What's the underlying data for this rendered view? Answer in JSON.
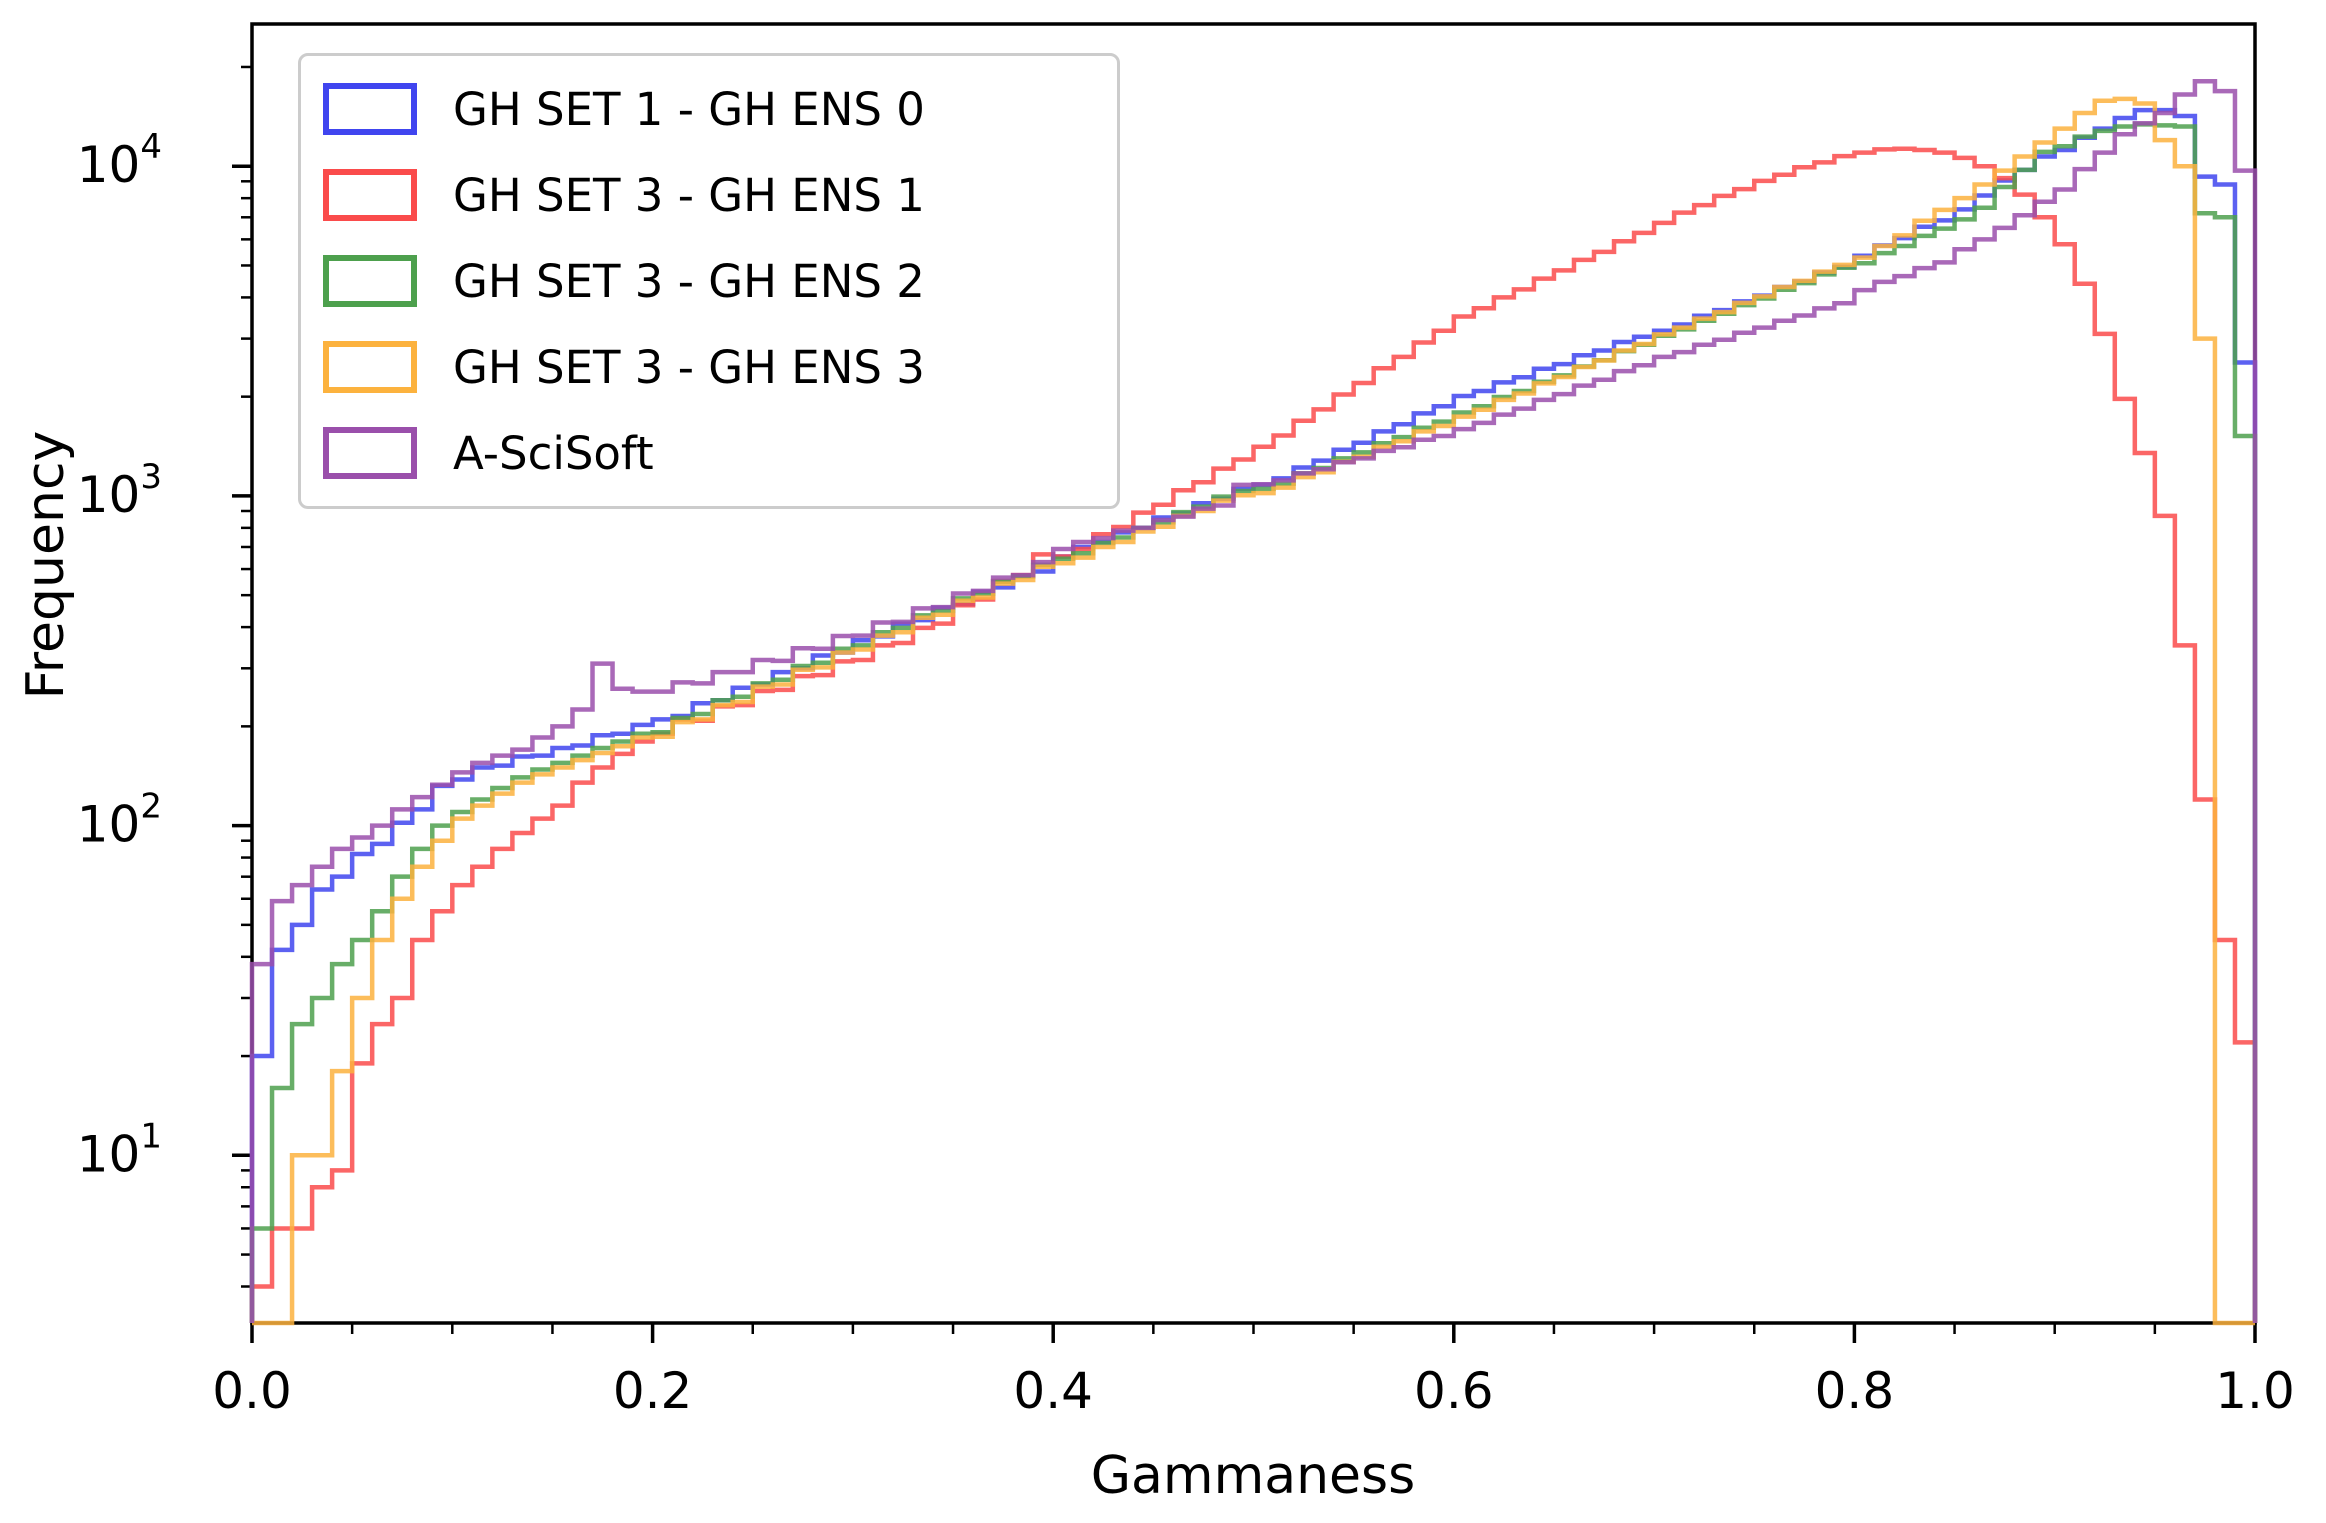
{
  "figure": {
    "xlabel": "Gammaness",
    "ylabel": "Frequency"
  },
  "axis_color": "#000000",
  "legend_border_color": "#cccccc",
  "chart_data": {
    "type": "bar",
    "subtype": "step-histogram",
    "title": "",
    "xlabel": "Gammaness",
    "ylabel": "Frequency",
    "xlim": [
      0.0,
      1.0
    ],
    "yscale": "log",
    "ylim": [
      3.1,
      27000
    ],
    "bins": 100,
    "bin_width": 0.01,
    "grid": false,
    "legend_position": "upper left",
    "xticks": [
      {
        "value": 0.0,
        "label": "0.0"
      },
      {
        "value": 0.2,
        "label": "0.2"
      },
      {
        "value": 0.4,
        "label": "0.4"
      },
      {
        "value": 0.6,
        "label": "0.6"
      },
      {
        "value": 0.8,
        "label": "0.8"
      },
      {
        "value": 1.0,
        "label": "1.0"
      }
    ],
    "xtick_minor_step": 0.05,
    "yticks": [
      {
        "value": 10,
        "label": "10",
        "exponent": "1"
      },
      {
        "value": 100,
        "label": "10",
        "exponent": "2"
      },
      {
        "value": 1000,
        "label": "10",
        "exponent": "3"
      },
      {
        "value": 10000,
        "label": "10",
        "exponent": "4"
      }
    ],
    "series": [
      {
        "name": "GH SET 1 - GH ENS 0",
        "color": "#4045ef",
        "values": [
          20,
          42,
          50,
          64,
          70,
          82,
          88,
          102,
          112,
          132,
          138,
          150,
          152,
          162,
          163,
          172,
          175,
          188,
          190,
          202,
          210,
          215,
          235,
          240,
          262,
          268,
          292,
          300,
          328,
          335,
          365,
          375,
          410,
          420,
          458,
          470,
          512,
          528,
          572,
          590,
          655,
          700,
          725,
          775,
          800,
          860,
          885,
          950,
          980,
          1050,
          1080,
          1130,
          1220,
          1280,
          1380,
          1450,
          1570,
          1650,
          1780,
          1870,
          2010,
          2080,
          2210,
          2290,
          2430,
          2510,
          2670,
          2760,
          2930,
          3040,
          3170,
          3310,
          3520,
          3660,
          3890,
          4050,
          4300,
          4470,
          4760,
          4950,
          5350,
          5750,
          6050,
          6550,
          6850,
          7400,
          8150,
          9050,
          9750,
          10700,
          11200,
          12200,
          13000,
          14000,
          14800,
          14800,
          14200,
          9300,
          8800,
          2540
        ]
      },
      {
        "name": "GH SET 3 - GH ENS 1",
        "color": "#fa4b4b",
        "values": [
          4,
          6,
          6,
          8,
          9,
          19,
          25,
          30,
          45,
          55,
          66,
          75,
          85,
          95,
          105,
          115,
          135,
          150,
          165,
          180,
          190,
          210,
          208,
          230,
          232,
          256,
          258,
          284,
          286,
          315,
          318,
          352,
          358,
          398,
          410,
          466,
          485,
          552,
          575,
          665,
          655,
          690,
          765,
          805,
          890,
          940,
          1040,
          1100,
          1210,
          1290,
          1410,
          1525,
          1690,
          1830,
          2030,
          2200,
          2440,
          2640,
          2920,
          3170,
          3500,
          3710,
          4000,
          4230,
          4560,
          4830,
          5200,
          5500,
          5920,
          6280,
          6730,
          7230,
          7620,
          8130,
          8520,
          9030,
          9420,
          9930,
          10270,
          10730,
          11000,
          11250,
          11300,
          11200,
          11000,
          10600,
          10000,
          9200,
          8200,
          7000,
          5800,
          4400,
          3100,
          1970,
          1350,
          870,
          352,
          120,
          45,
          22
        ]
      },
      {
        "name": "GH SET 3 - GH ENS 2",
        "color": "#4da04d",
        "values": [
          6,
          16,
          25,
          30,
          38,
          45,
          55,
          70,
          85,
          100,
          110,
          120,
          130,
          140,
          148,
          155,
          163,
          172,
          180,
          190,
          192,
          212,
          218,
          240,
          246,
          270,
          277,
          305,
          312,
          344,
          352,
          386,
          398,
          434,
          448,
          489,
          505,
          549,
          570,
          618,
          645,
          670,
          720,
          748,
          800,
          832,
          893,
          928,
          995,
          1035,
          1050,
          1090,
          1170,
          1215,
          1300,
          1355,
          1445,
          1508,
          1610,
          1680,
          1790,
          1870,
          1995,
          2080,
          2220,
          2320,
          2470,
          2580,
          2750,
          2875,
          3060,
          3200,
          3400,
          3570,
          3790,
          3970,
          4220,
          4420,
          4700,
          4920,
          5080,
          5450,
          5730,
          6150,
          6470,
          6900,
          7480,
          8650,
          9750,
          11050,
          11500,
          12300,
          12800,
          13200,
          13400,
          13300,
          13200,
          7200,
          7000,
          1520
        ]
      },
      {
        "name": "GH SET 3 - GH ENS 3",
        "color": "#fcb23e",
        "values": [
          0,
          0,
          10,
          10,
          18,
          30,
          45,
          60,
          75,
          90,
          105,
          115,
          125,
          135,
          143,
          150,
          158,
          166,
          174,
          185,
          186,
          206,
          210,
          232,
          237,
          264,
          268,
          297,
          302,
          335,
          342,
          377,
          386,
          427,
          436,
          481,
          492,
          542,
          556,
          610,
          625,
          650,
          700,
          725,
          780,
          806,
          870,
          900,
          968,
          1005,
          1020,
          1060,
          1140,
          1180,
          1270,
          1315,
          1410,
          1465,
          1570,
          1630,
          1740,
          1825,
          1955,
          2045,
          2195,
          2295,
          2460,
          2575,
          2760,
          2890,
          3090,
          3240,
          3450,
          3610,
          3850,
          4030,
          4300,
          4490,
          4790,
          5020,
          5280,
          5730,
          6170,
          6830,
          7370,
          8000,
          8800,
          9700,
          10700,
          11800,
          13000,
          14500,
          15800,
          16000,
          15500,
          12000,
          10000,
          3000,
          0,
          0
        ]
      },
      {
        "name": "A-SciSoft",
        "color": "#9a4fab",
        "values": [
          38,
          59,
          66,
          75,
          85,
          92,
          100,
          112,
          122,
          133,
          145,
          155,
          163,
          170,
          185,
          200,
          225,
          310,
          260,
          255,
          255,
          272,
          270,
          292,
          292,
          318,
          316,
          345,
          344,
          376,
          377,
          413,
          415,
          456,
          460,
          506,
          515,
          565,
          575,
          630,
          690,
          725,
          745,
          785,
          800,
          845,
          865,
          915,
          935,
          1080,
          1085,
          1115,
          1170,
          1205,
          1265,
          1300,
          1370,
          1405,
          1480,
          1520,
          1595,
          1665,
          1765,
          1840,
          1955,
          2035,
          2160,
          2250,
          2390,
          2490,
          2640,
          2730,
          2875,
          2975,
          3125,
          3240,
          3400,
          3525,
          3705,
          3840,
          4210,
          4460,
          4640,
          4910,
          5110,
          5600,
          6000,
          6500,
          7100,
          7800,
          8500,
          9800,
          11000,
          12500,
          13500,
          14500,
          16500,
          18100,
          16900,
          9700
        ]
      }
    ]
  }
}
